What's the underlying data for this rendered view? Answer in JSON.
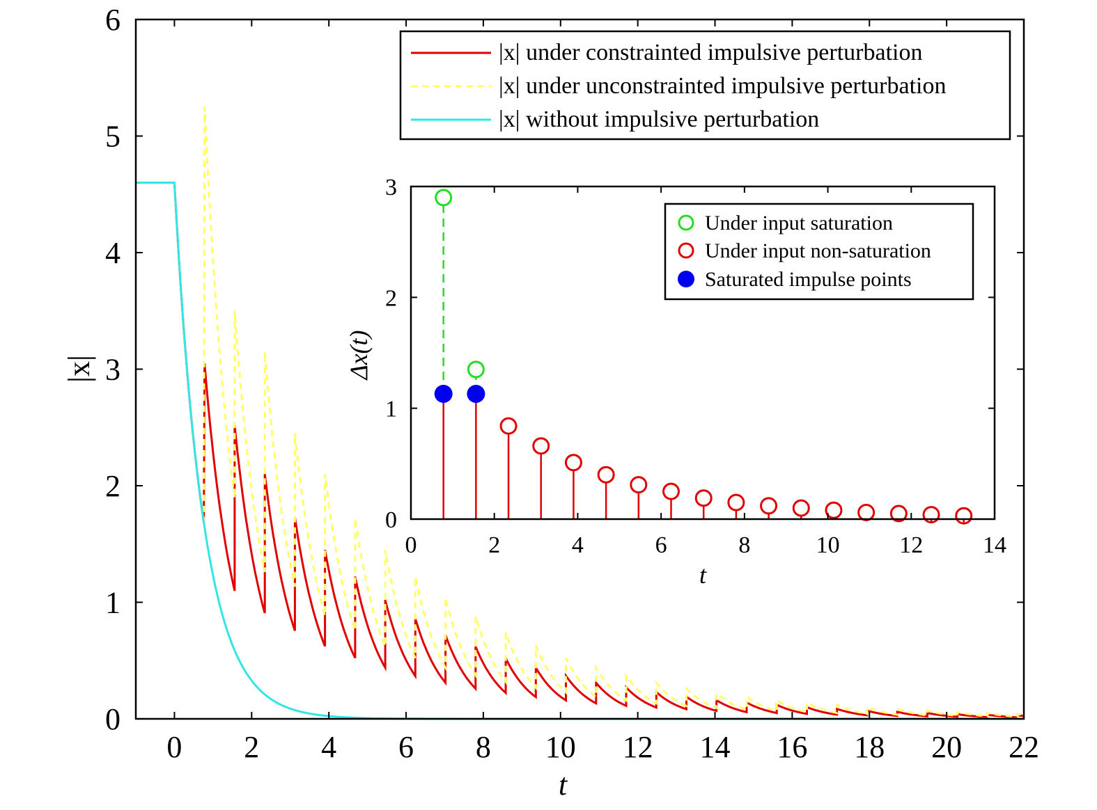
{
  "chart_data": [
    {
      "type": "line",
      "xlabel": "t",
      "ylabel": "|x|",
      "xlim": [
        -1,
        22
      ],
      "ylim": [
        0,
        6
      ],
      "xticks": [
        0,
        2,
        4,
        6,
        8,
        10,
        12,
        14,
        16,
        18,
        20,
        22
      ],
      "yticks": [
        0,
        1,
        2,
        3,
        4,
        5,
        6
      ],
      "legend_position": "top-right",
      "grid": false,
      "series": [
        {
          "name": "|x| under constrainted impulsive perturbation",
          "color": "#e00000",
          "style": "solid",
          "initial_value": 4.6,
          "impulse_times": [
            0.78,
            1.56,
            2.34,
            3.12,
            3.9,
            4.68,
            5.46,
            6.24,
            7.02,
            7.8,
            8.58,
            9.36,
            10.14,
            10.92,
            11.7,
            12.48,
            13.26,
            14.04,
            14.82,
            15.6,
            16.38,
            17.16,
            17.94,
            18.72,
            19.5,
            20.28,
            21.06,
            21.84
          ],
          "peak_values": [
            3.05,
            2.52,
            2.1,
            1.73,
            1.45,
            1.22,
            1.02,
            0.86,
            0.72,
            0.62,
            0.52,
            0.44,
            0.37,
            0.31,
            0.27,
            0.23,
            0.19,
            0.16,
            0.14,
            0.12,
            0.1,
            0.085,
            0.07,
            0.06,
            0.05,
            0.04,
            0.035,
            0.03
          ]
        },
        {
          "name": "|x| under unconstrainted impulsive perturbation",
          "color": "#ffff66",
          "style": "dashed",
          "initial_value": 4.6,
          "impulse_times": [
            0.78,
            1.56,
            2.34,
            3.12,
            3.9,
            4.68,
            5.46,
            6.24,
            7.02,
            7.8,
            8.58,
            9.36,
            10.14,
            10.92,
            11.7,
            12.48,
            13.26,
            14.04,
            14.82,
            15.6,
            16.38,
            17.16,
            17.94,
            18.72,
            19.5,
            20.28,
            21.06,
            21.84
          ],
          "peak_values": [
            5.25,
            3.5,
            3.15,
            2.45,
            2.1,
            1.72,
            1.45,
            1.22,
            1.04,
            0.88,
            0.74,
            0.63,
            0.52,
            0.44,
            0.37,
            0.31,
            0.26,
            0.22,
            0.19,
            0.16,
            0.14,
            0.12,
            0.1,
            0.085,
            0.072,
            0.06,
            0.05,
            0.04
          ]
        },
        {
          "name": "|x| without impulsive perturbation",
          "color": "#33e6e6",
          "style": "solid",
          "initial_value": 4.6,
          "decay_rate": 1.32
        }
      ]
    },
    {
      "type": "scatter",
      "inset": true,
      "xlabel": "t",
      "ylabel": "Δx(t)",
      "xlim": [
        0,
        14
      ],
      "ylim": [
        0,
        3
      ],
      "xticks": [
        0,
        2,
        4,
        6,
        8,
        10,
        12,
        14
      ],
      "yticks": [
        0,
        1,
        2,
        3
      ],
      "legend_position": "top-right",
      "series": [
        {
          "name": "Under input saturation",
          "color": "#22dd22",
          "marker": "open-circle",
          "x": [
            0.78,
            1.56
          ],
          "y": [
            2.9,
            1.35
          ]
        },
        {
          "name": "Under input non-saturation",
          "color": "#e00000",
          "marker": "open-circle",
          "x": [
            2.34,
            3.12,
            3.9,
            4.68,
            5.46,
            6.24,
            7.02,
            7.8,
            8.58,
            9.36,
            10.14,
            10.92,
            11.7,
            12.48,
            13.26
          ],
          "y": [
            0.84,
            0.66,
            0.51,
            0.4,
            0.31,
            0.25,
            0.19,
            0.15,
            0.12,
            0.1,
            0.08,
            0.06,
            0.05,
            0.04,
            0.03
          ]
        },
        {
          "name": "Saturated impulse points",
          "color": "#0000ee",
          "marker": "filled-circle",
          "x": [
            0.78,
            1.56
          ],
          "y": [
            1.13,
            1.13
          ]
        }
      ]
    }
  ]
}
